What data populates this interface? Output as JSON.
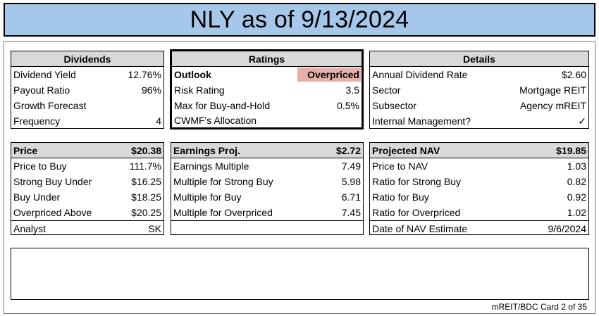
{
  "title": "NLY as of 9/13/2024",
  "dividends": {
    "header": "Dividends",
    "rows": [
      {
        "label": "Dividend Yield",
        "value": "12.76%"
      },
      {
        "label": "Payout Ratio",
        "value": "96%"
      },
      {
        "label": "Growth Forecast",
        "value": ""
      },
      {
        "label": "Frequency",
        "value": "4"
      }
    ]
  },
  "ratings": {
    "header": "Ratings",
    "outlook_label": "Outlook",
    "outlook_value": "Overpriced",
    "rows": [
      {
        "label": "Risk Rating",
        "value": "3.5"
      },
      {
        "label": "Max for Buy-and-Hold",
        "value": "0.5%"
      },
      {
        "label": "CWMF's Allocation",
        "value": ""
      }
    ]
  },
  "details": {
    "header": "Details",
    "rows": [
      {
        "label": "Annual Dividend Rate",
        "value": "$2.60"
      },
      {
        "label": "Sector",
        "value": "Mortgage REIT"
      },
      {
        "label": "Subsector",
        "value": "Agency mREIT"
      },
      {
        "label": "Internal Management?",
        "value": "✓"
      }
    ]
  },
  "price": {
    "header_label": "Price",
    "header_value": "$20.38",
    "rows": [
      {
        "label": "Price to Buy",
        "value": "111.7%"
      },
      {
        "label": "Strong Buy Under",
        "value": "$16.25"
      },
      {
        "label": "Buy Under",
        "value": "$18.25"
      },
      {
        "label": "Overpriced Above",
        "value": "$20.25"
      }
    ],
    "analyst_label": "Analyst",
    "analyst_value": "SK"
  },
  "earnings": {
    "header_label": "Earnings Proj.",
    "header_value": "$2.72",
    "rows": [
      {
        "label": "Earnings Multiple",
        "value": "7.49"
      },
      {
        "label": "Multiple for Strong Buy",
        "value": "5.98"
      },
      {
        "label": "Multiple for Buy",
        "value": "6.71"
      },
      {
        "label": "Multiple for Overpriced",
        "value": "7.45"
      }
    ]
  },
  "nav": {
    "header_label": "Projected NAV",
    "header_value": "$19.85",
    "rows": [
      {
        "label": "Price to NAV",
        "value": "1.03"
      },
      {
        "label": "Ratio for Strong Buy",
        "value": "0.82"
      },
      {
        "label": "Ratio for Buy",
        "value": "0.92"
      },
      {
        "label": "Ratio for Overpriced",
        "value": "1.02"
      }
    ],
    "date_label": "Date of NAV Estimate",
    "date_value": "9/6/2024"
  },
  "footer": "mREIT/BDC Card 2 of 35",
  "colors": {
    "title_bg": "#a5c8ea",
    "header_bg": "#d9d9d9",
    "overpriced_bg": "#e6b0a8"
  }
}
